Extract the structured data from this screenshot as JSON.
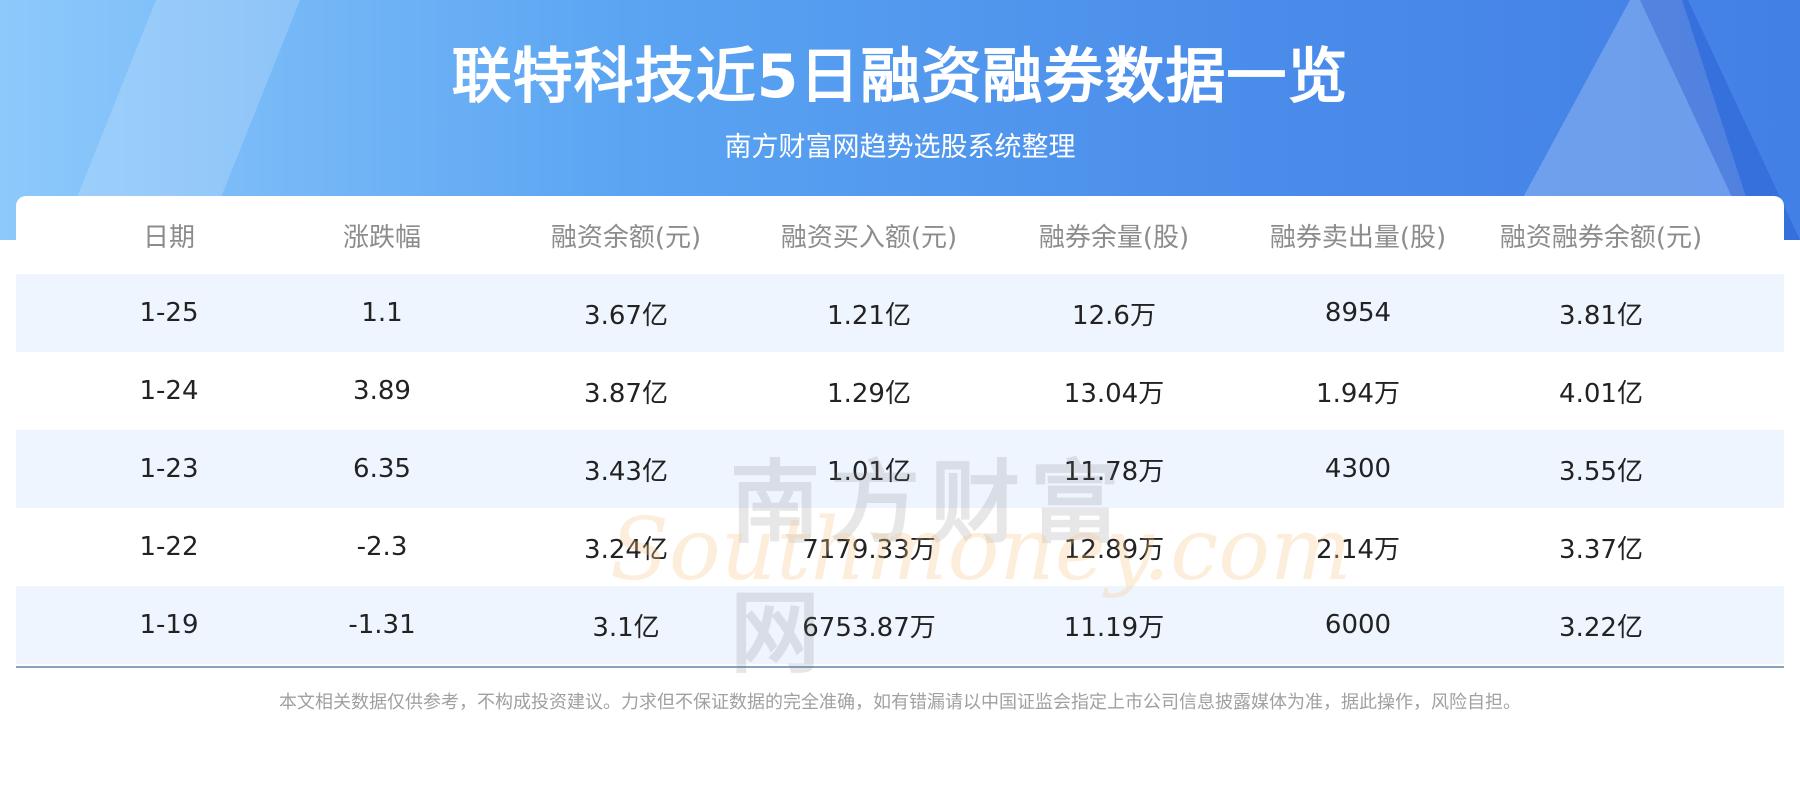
{
  "header": {
    "title": "联特科技近5日融资融券数据一览",
    "subtitle": "南方财富网趋势选股系统整理"
  },
  "table": {
    "columns": [
      "日期",
      "涨跌幅",
      "融资余额(元)",
      "融资买入额(元)",
      "融券余量(股)",
      "融券卖出量(股)",
      "融资融券余额(元)"
    ],
    "rows": [
      [
        "1-25",
        "1.1",
        "3.67亿",
        "1.21亿",
        "12.6万",
        "8954",
        "3.81亿"
      ],
      [
        "1-24",
        "3.89",
        "3.87亿",
        "1.29亿",
        "13.04万",
        "1.94万",
        "4.01亿"
      ],
      [
        "1-23",
        "6.35",
        "3.43亿",
        "1.01亿",
        "11.78万",
        "4300",
        "3.55亿"
      ],
      [
        "1-22",
        "-2.3",
        "3.24亿",
        "7179.33万",
        "12.89万",
        "2.14万",
        "3.37亿"
      ],
      [
        "1-19",
        "-1.31",
        "3.1亿",
        "6753.87万",
        "11.19万",
        "6000",
        "3.22亿"
      ]
    ]
  },
  "watermark": {
    "cn": "南方财富网",
    "en": "Southmoney.com"
  },
  "footer": {
    "disclaimer": "本文相关数据仅供参考，不构成投资建议。力求但不保证数据的完全准确，如有错漏请以中国证监会指定上市公司信息披露媒体为准，据此操作，风险自担。"
  },
  "colors": {
    "header_blue": "#4a8cea",
    "row_alt": "#eef5fe"
  }
}
